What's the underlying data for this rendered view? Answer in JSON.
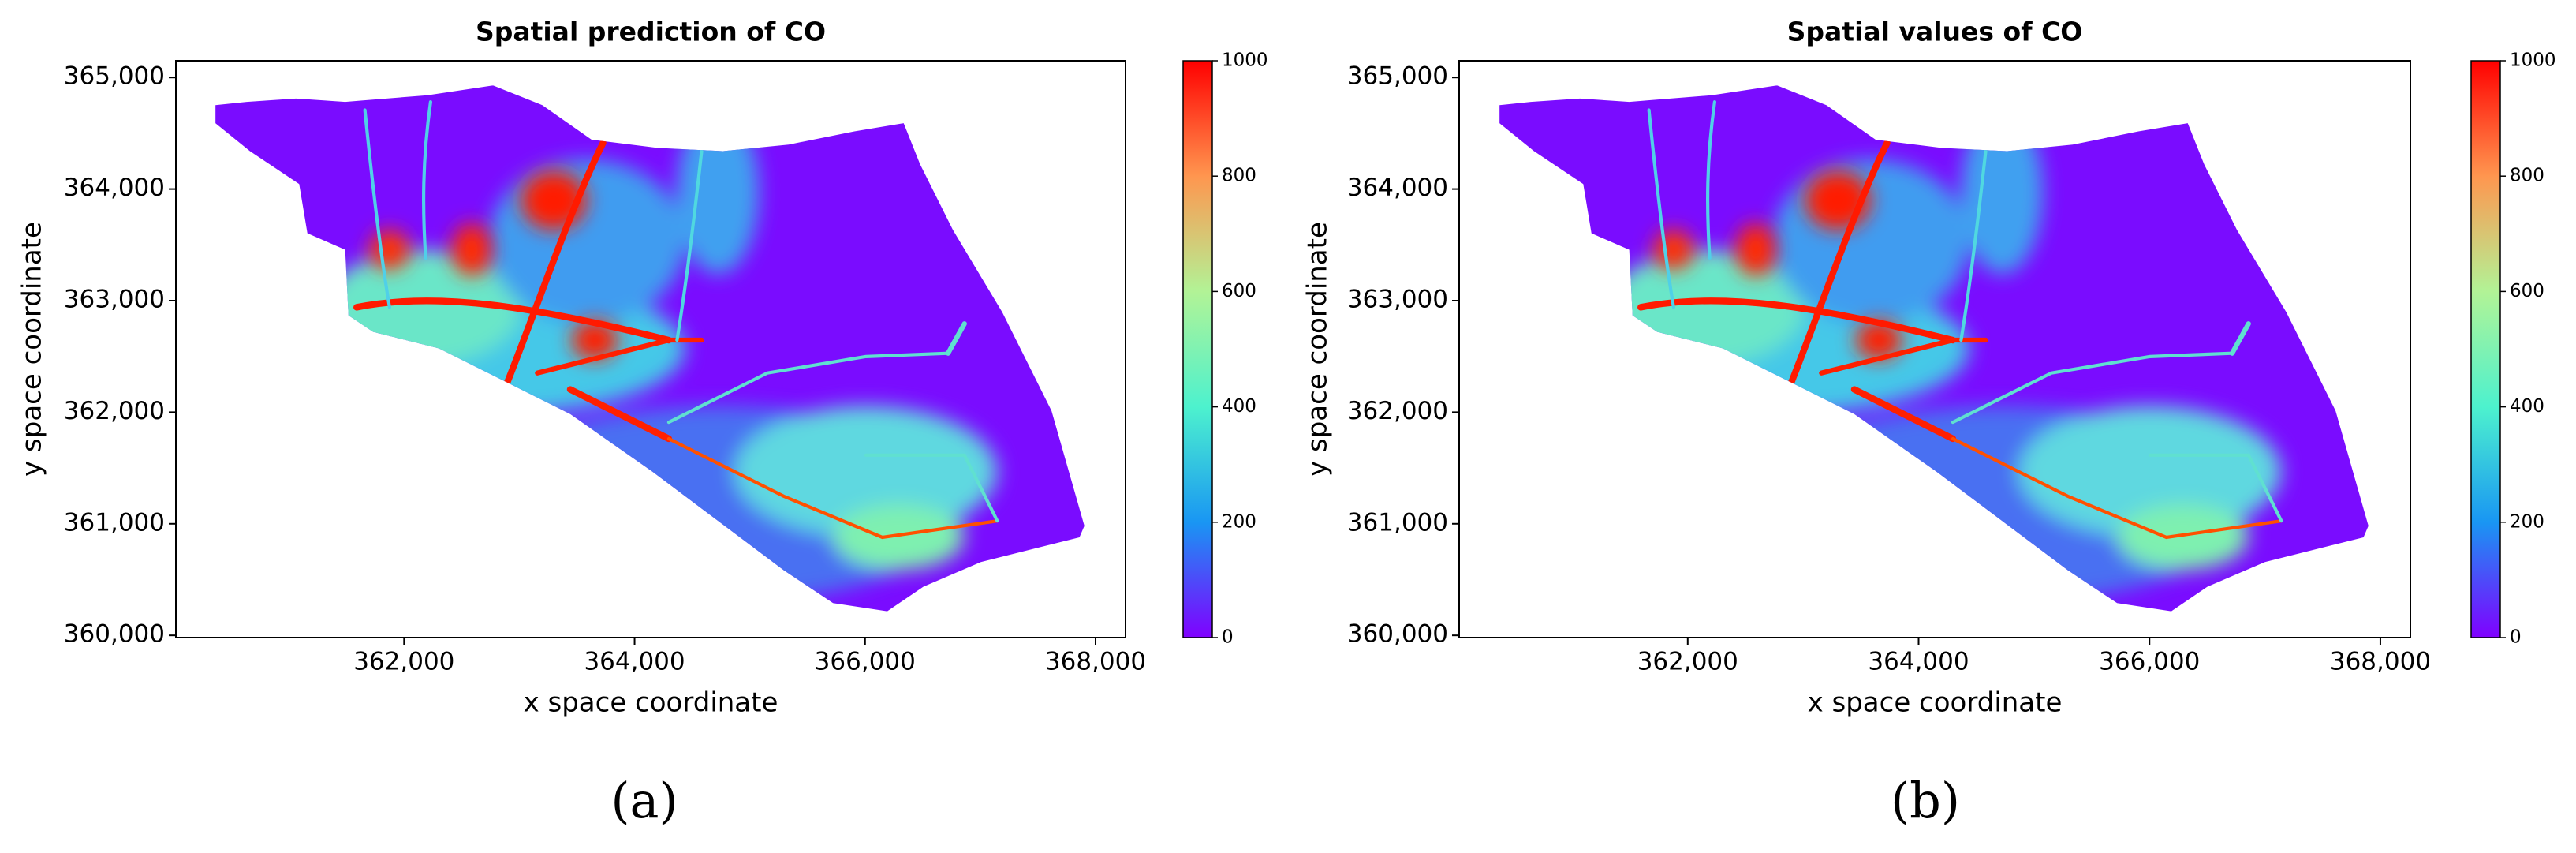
{
  "chart_data": [
    {
      "type": "heatmap",
      "title": "Spatial prediction of CO",
      "xlabel": "x space coordinate",
      "ylabel": "y space coordinate",
      "xlim": [
        360020,
        368260
      ],
      "ylim": [
        359980,
        365150
      ],
      "xticks": [
        {
          "value": 362000,
          "label": "362,000"
        },
        {
          "value": 364000,
          "label": "364,000"
        },
        {
          "value": 366000,
          "label": "366,000"
        },
        {
          "value": 368000,
          "label": "368,000"
        }
      ],
      "yticks": [
        {
          "value": 360000,
          "label": "360,000"
        },
        {
          "value": 361000,
          "label": "361,000"
        },
        {
          "value": 362000,
          "label": "362,000"
        },
        {
          "value": 363000,
          "label": "363,000"
        },
        {
          "value": 364000,
          "label": "364,000"
        },
        {
          "value": 365000,
          "label": "365,000"
        }
      ],
      "colormap": "rainbow",
      "clim": [
        0,
        1000
      ],
      "cticks": [
        0,
        200,
        400,
        600,
        800,
        1000
      ],
      "caption": "(a)"
    },
    {
      "type": "heatmap",
      "title": "Spatial values of CO",
      "xlabel": "x space coordinate",
      "ylabel": "y space coordinate",
      "xlim": [
        360020,
        368260
      ],
      "ylim": [
        359980,
        365150
      ],
      "xticks": [
        {
          "value": 362000,
          "label": "362,000"
        },
        {
          "value": 364000,
          "label": "364,000"
        },
        {
          "value": 366000,
          "label": "366,000"
        },
        {
          "value": 368000,
          "label": "368,000"
        }
      ],
      "yticks": [
        {
          "value": 360000,
          "label": "360,000"
        },
        {
          "value": 361000,
          "label": "361,000"
        },
        {
          "value": 362000,
          "label": "362,000"
        },
        {
          "value": 363000,
          "label": "363,000"
        },
        {
          "value": 364000,
          "label": "364,000"
        },
        {
          "value": 365000,
          "label": "365,000"
        }
      ],
      "colormap": "rainbow",
      "clim": [
        0,
        1000
      ],
      "cticks": [
        0,
        200,
        400,
        600,
        800,
        1000
      ],
      "caption": "(b)"
    }
  ]
}
